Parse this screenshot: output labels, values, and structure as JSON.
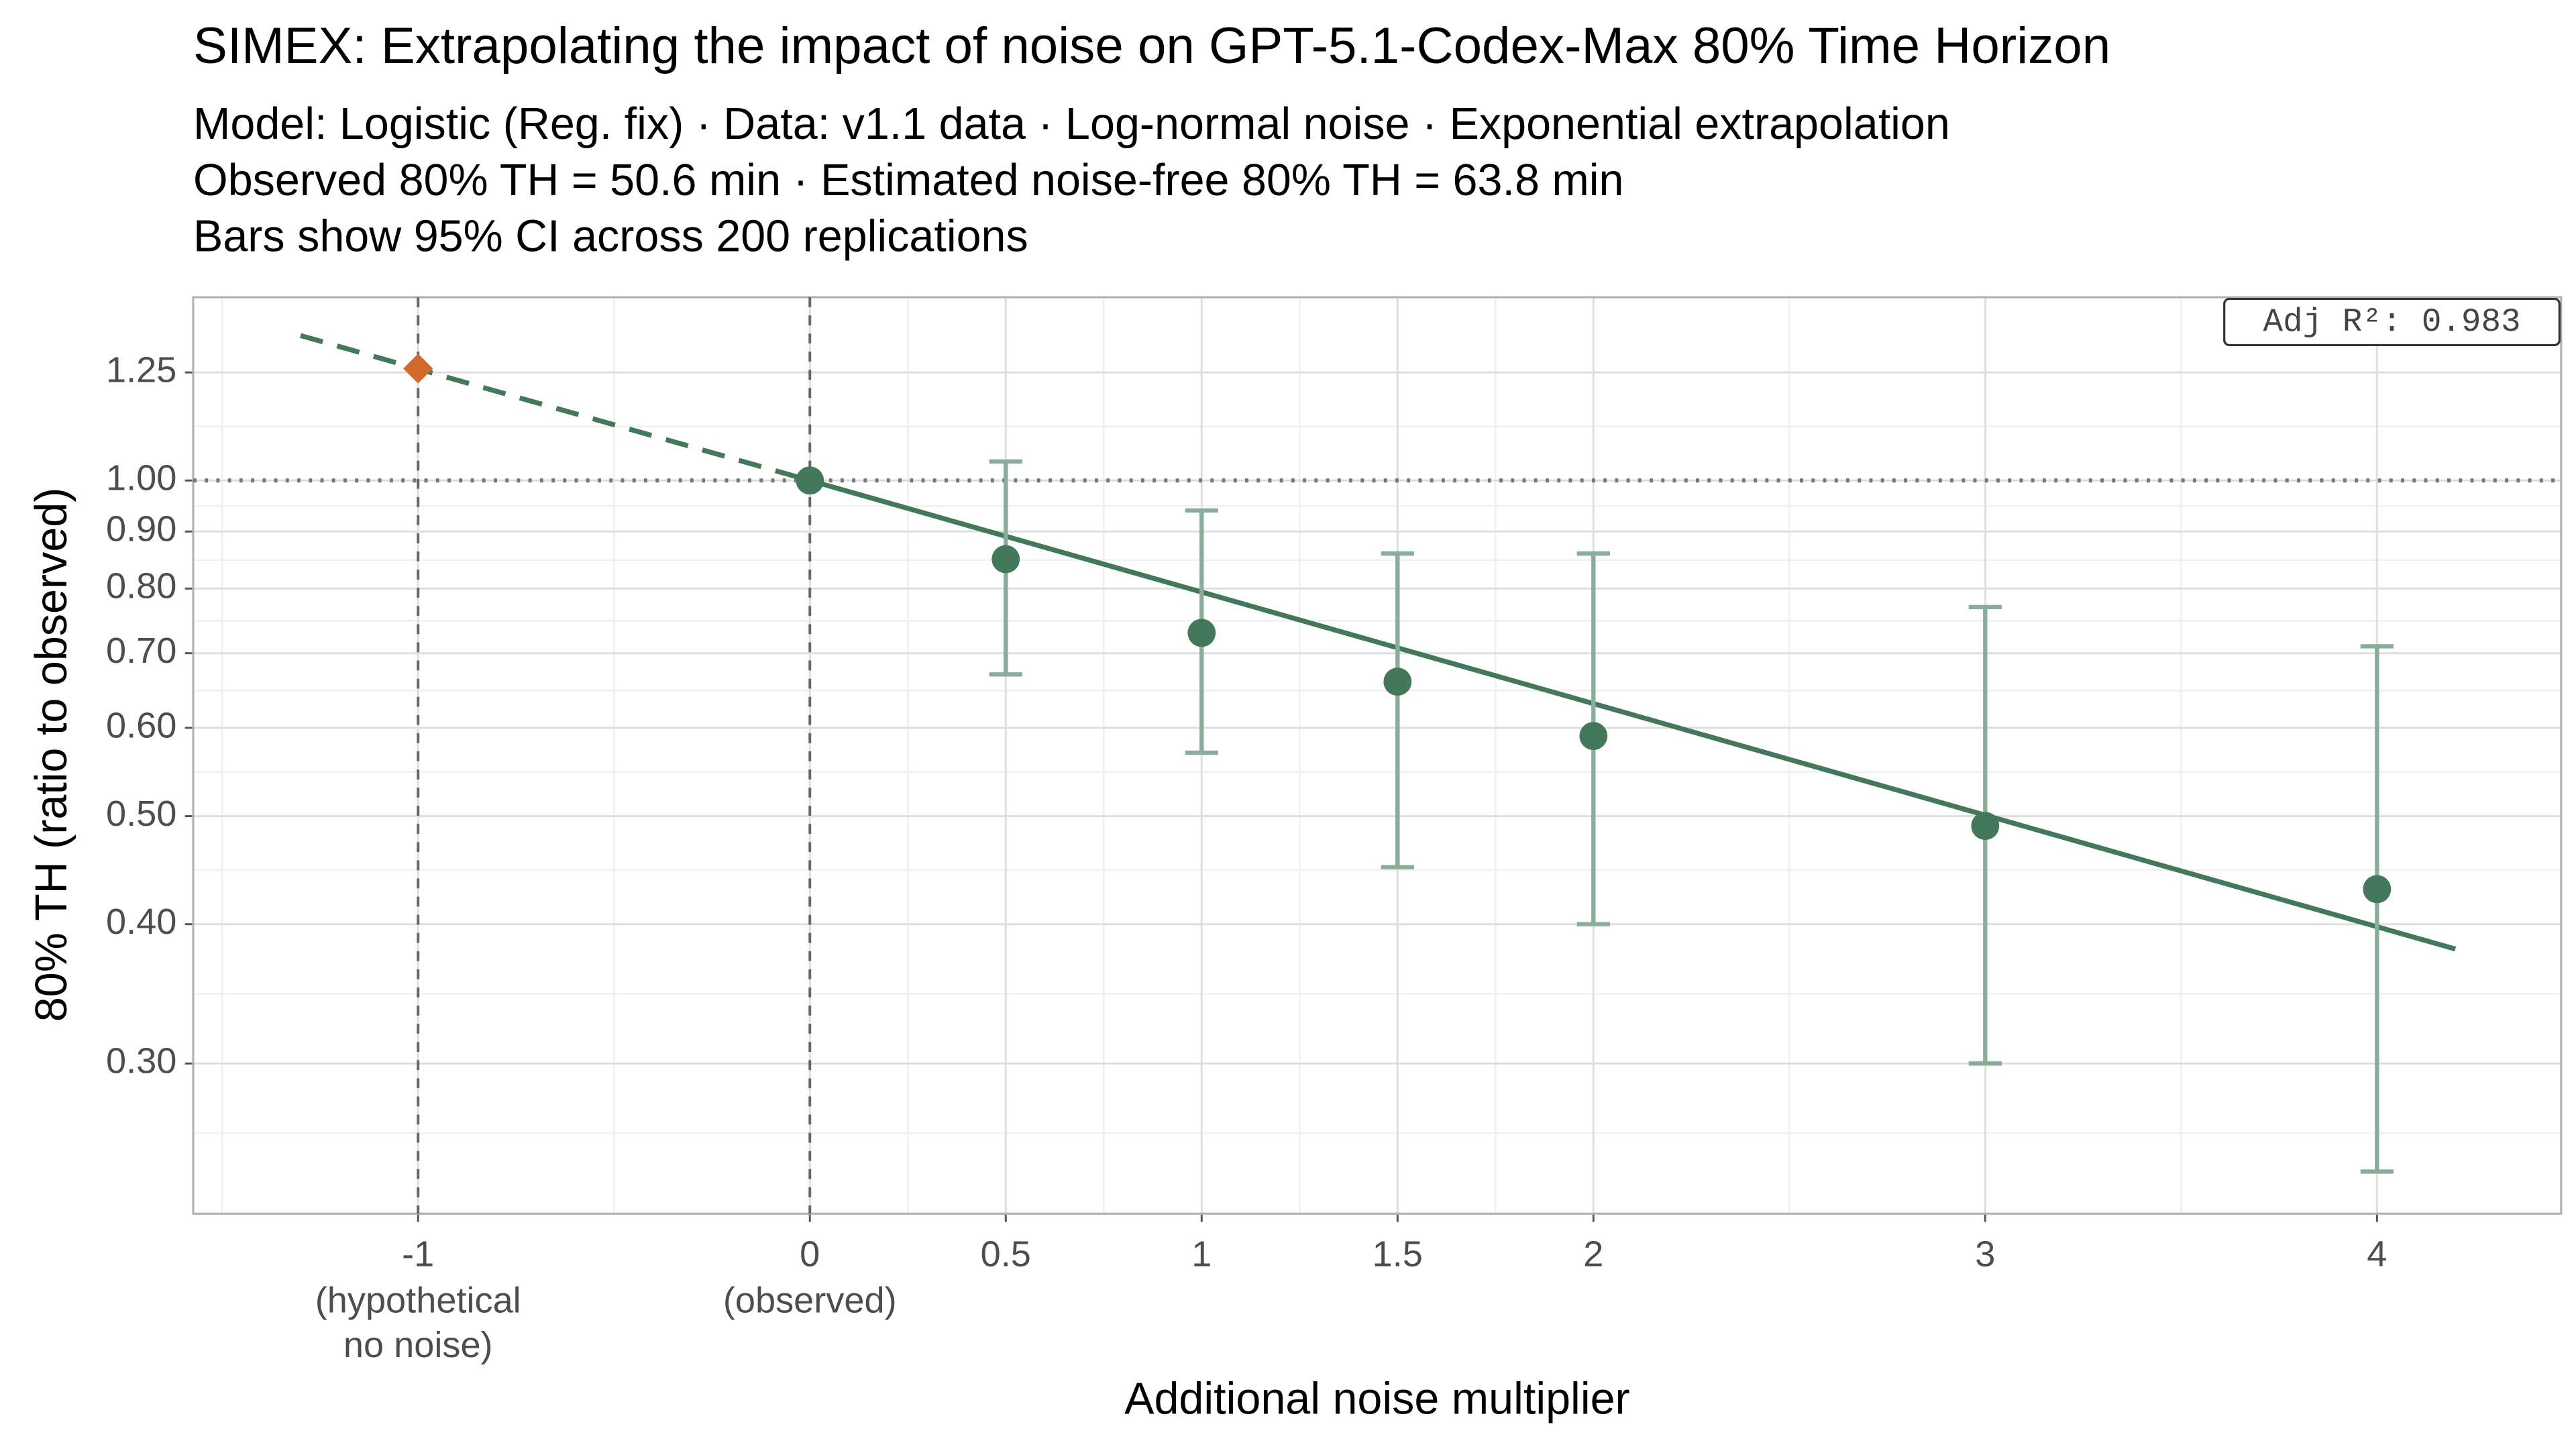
{
  "chart_data": {
    "type": "scatter",
    "title": "SIMEX: Extrapolating the impact of noise on GPT-5.1-Codex-Max 80% Time Horizon",
    "subtitle_lines": [
      "Model: Logistic (Reg. fix) · Data: v1.1 data · Log-normal noise · Exponential extrapolation",
      "Observed 80% TH = 50.6 min · Estimated noise-free 80% TH = 63.8 min",
      "Bars show 95% CI across 200 replications"
    ],
    "x_label": "Additional noise multiplier",
    "y_label": "80% TH (ratio to observed)",
    "xlim": [
      -1.574,
      4.47
    ],
    "ylim": [
      0.22,
      1.46
    ],
    "log_y": true,
    "grid": true,
    "xticks": [
      -1,
      0,
      0.5,
      1,
      1.5,
      2,
      3,
      4
    ],
    "yticks": [
      {
        "value": 0.3,
        "label": "0.30"
      },
      {
        "value": 0.4,
        "label": "0.40"
      },
      {
        "value": 0.5,
        "label": "0.50"
      },
      {
        "value": 0.6,
        "label": "0.60"
      },
      {
        "value": 0.7,
        "label": "0.70"
      },
      {
        "value": 0.8,
        "label": "0.80"
      },
      {
        "value": 0.9,
        "label": "0.90"
      },
      {
        "value": 1,
        "label": "1.00"
      },
      1.25
    ],
    "tick_notes": [
      {
        "x": -1,
        "lines": [
          "(hypothetical",
          "no noise)"
        ]
      },
      {
        "x": 0,
        "lines": [
          "(observed)"
        ]
      }
    ],
    "points": {
      "color": "#44785a",
      "bar_color": "#8aad99",
      "x": [
        0,
        0.5,
        1,
        1.5,
        2,
        3,
        4
      ],
      "values": [
        1.0,
        0.85,
        0.73,
        0.66,
        0.59,
        0.49,
        0.43
      ],
      "lower": [
        null,
        0.67,
        0.57,
        0.45,
        0.4,
        0.3,
        0.24
      ],
      "upper": [
        null,
        1.04,
        0.94,
        0.86,
        0.86,
        0.77,
        0.71
      ]
    },
    "fit": {
      "color": "#44785a",
      "x": [
        0,
        4.2
      ],
      "values": [
        1.0,
        0.38
      ]
    },
    "extrapolation": {
      "color": "#44785a",
      "dashed": true,
      "x": [
        -1.3,
        0
      ],
      "values": [
        1.349,
        1.0
      ]
    },
    "extrapolated_point": {
      "color": "#d2692a",
      "x": -1,
      "value": 1.26
    },
    "vlines": [
      -1,
      0
    ],
    "hline": 1,
    "annotation": "Adj R²: 0.983"
  }
}
